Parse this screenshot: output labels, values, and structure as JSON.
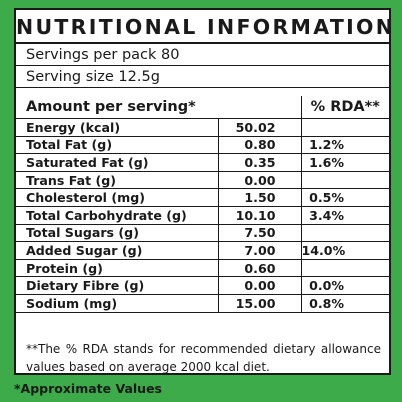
{
  "title": "NUTRITIONAL INFORMATION",
  "servings_per_pack": "Servings per pack 80",
  "serving_size": "Serving size 12.5g",
  "header": {
    "amount": "Amount per serving*",
    "rda": "% RDA**"
  },
  "rows": [
    {
      "name": "Energy (kcal)",
      "value": "50.02",
      "rda": ""
    },
    {
      "name": "Total Fat (g)",
      "value": "0.80",
      "rda": "1.2%"
    },
    {
      "name": "Saturated Fat (g)",
      "value": "0.35",
      "rda": "1.6%"
    },
    {
      "name": "Trans Fat (g)",
      "value": "0.00",
      "rda": ""
    },
    {
      "name": "Cholesterol (mg)",
      "value": "1.50",
      "rda": "0.5%"
    },
    {
      "name": "Total Carbohydrate (g)",
      "value": "10.10",
      "rda": "3.4%"
    },
    {
      "name": "Total Sugars (g)",
      "value": "7.50",
      "rda": ""
    },
    {
      "name": "Added  Sugar (g)",
      "value": "7.00",
      "rda": "14.0%"
    },
    {
      "name": "Protein (g)",
      "value": "0.60",
      "rda": ""
    },
    {
      "name": "Dietary Fibre (g)",
      "value": "0.00",
      "rda": "0.0%"
    },
    {
      "name": "Sodium (mg)",
      "value": "15.00",
      "rda": "0.8%"
    }
  ],
  "footnote": "**The % RDA stands for recommended dietary allowance values based on average 2000 kcal diet.",
  "approx_note": "*Approximate Values",
  "colors": {
    "background_green": "#3dab49",
    "text": "#1a1a1a",
    "card": "#ffffff"
  }
}
